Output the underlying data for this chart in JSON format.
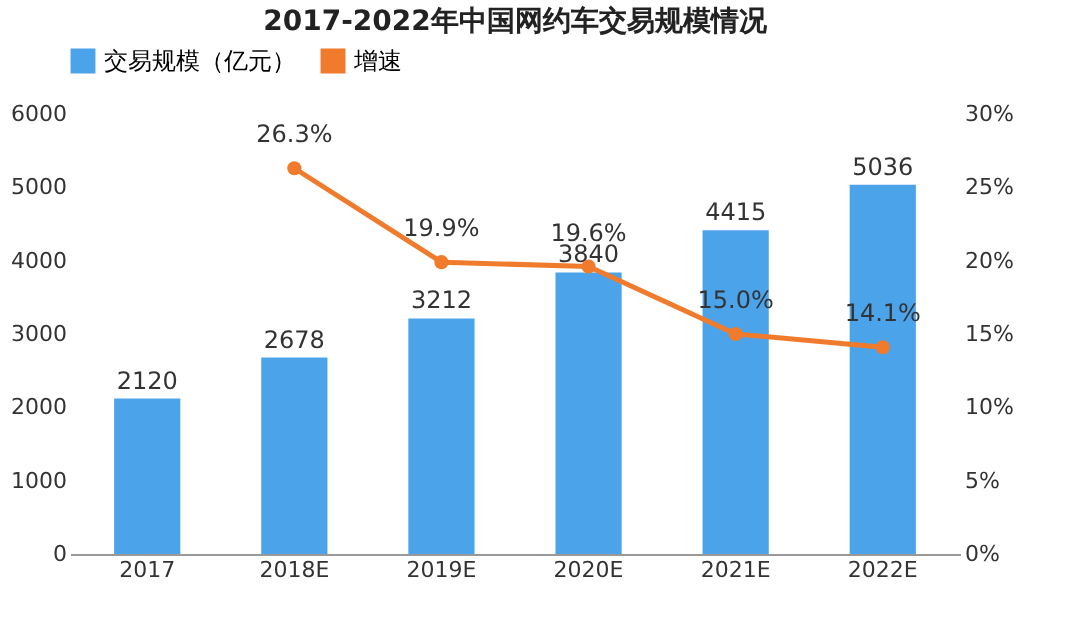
{
  "chart_data": {
    "type": "bar",
    "title": "2017-2022年中国网约车交易规模情况",
    "categories": [
      "2017",
      "2018E",
      "2019E",
      "2020E",
      "2021E",
      "2022E"
    ],
    "series": [
      {
        "name": "交易规模（亿元）",
        "color": "#4ba3ea",
        "values": [
          2120,
          2678,
          3212,
          3840,
          4415,
          5036
        ],
        "value_labels": [
          "2120",
          "2678",
          "3212",
          "3840",
          "4415",
          "5036"
        ]
      },
      {
        "name": "增速",
        "type": "line",
        "axis": "y2",
        "color": "#f07b2c",
        "marker": "circle",
        "line_style": "solid",
        "values": [
          null,
          26.3,
          19.9,
          19.6,
          15.0,
          14.1
        ],
        "value_labels": [
          null,
          "26.3%",
          "19.9%",
          "19.6%",
          "15.0%",
          "14.1%"
        ]
      }
    ],
    "ylim": [
      0,
      6000
    ],
    "yticks": [
      0,
      1000,
      2000,
      3000,
      4000,
      5000,
      6000
    ],
    "y2lim": [
      0,
      30
    ],
    "y2ticks": [
      {
        "value": 0,
        "label": "0%"
      },
      {
        "value": 5,
        "label": "5%"
      },
      {
        "value": 10,
        "label": "10%"
      },
      {
        "value": 15,
        "label": "15%"
      },
      {
        "value": 20,
        "label": "20%"
      },
      {
        "value": 25,
        "label": "25%"
      },
      {
        "value": 30,
        "label": "30%"
      }
    ],
    "grid": false,
    "legend": "top"
  }
}
